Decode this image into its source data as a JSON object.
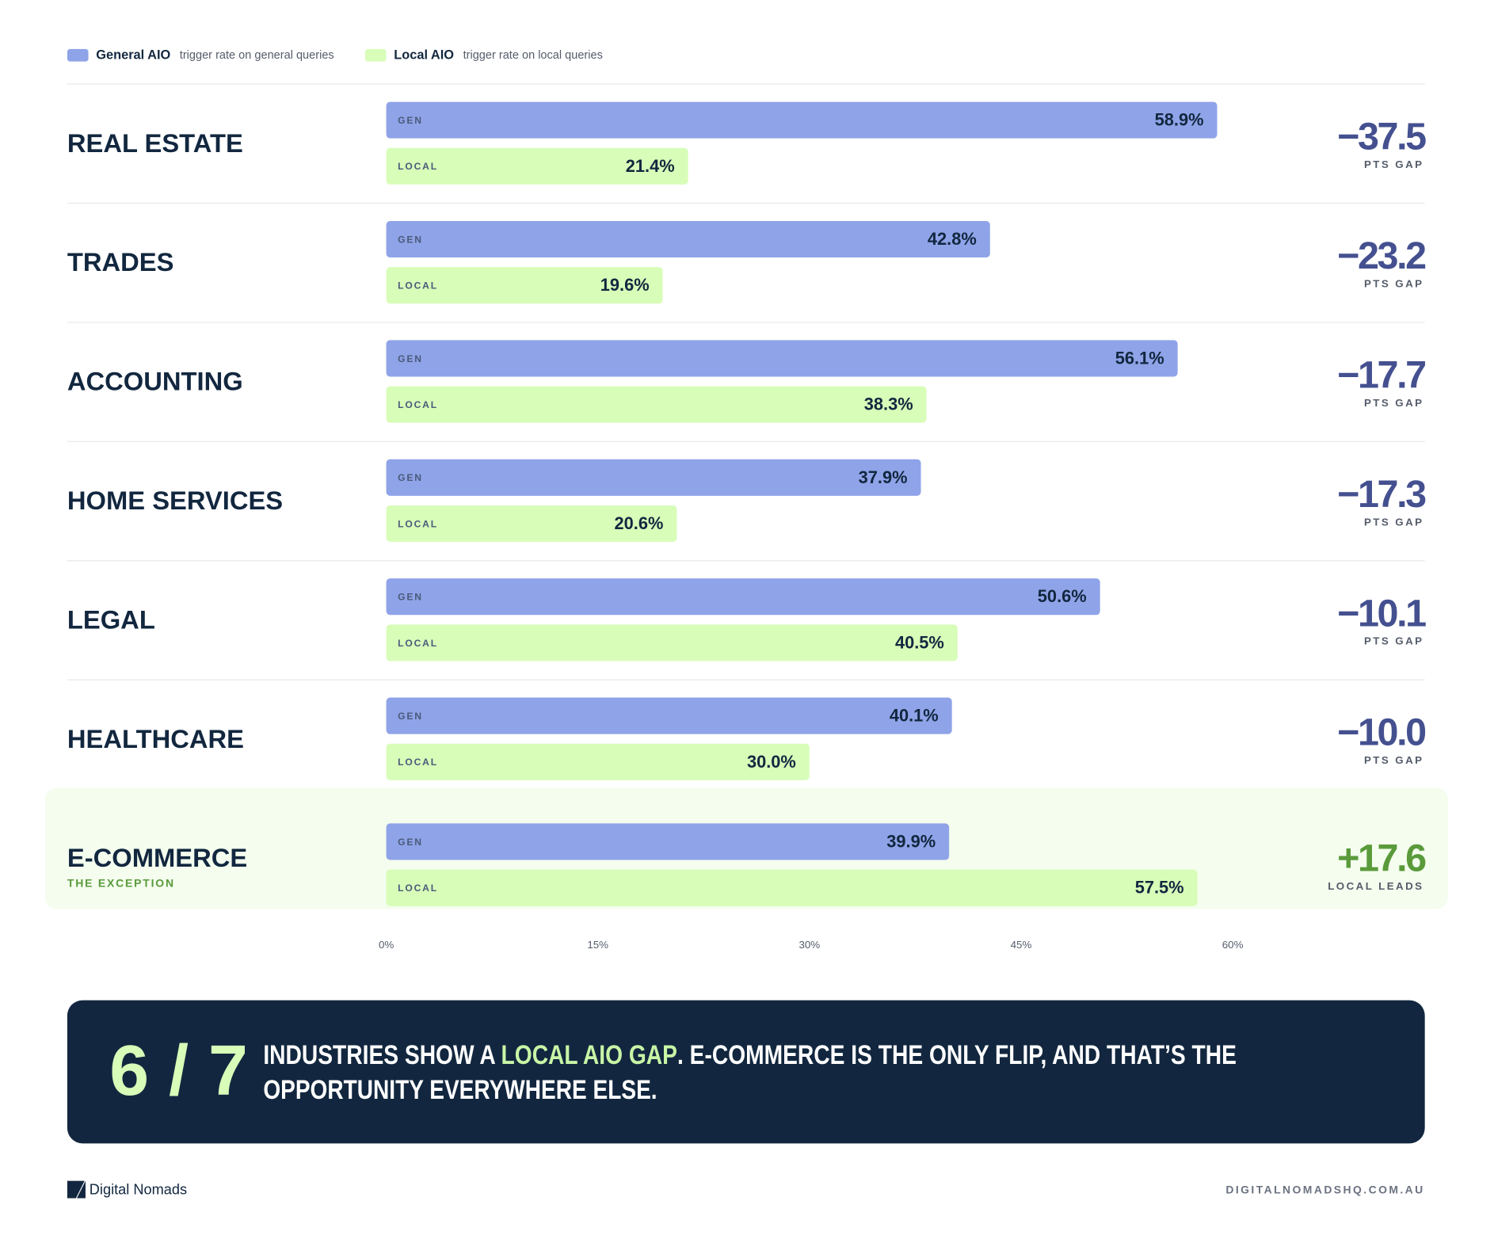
{
  "chart_data": {
    "type": "grouped-bar-horizontal",
    "legend": [
      {
        "name": "General AIO",
        "description": "trigger rate on general queries"
      },
      {
        "name": "Local AIO",
        "description": "trigger rate on local queries"
      }
    ],
    "categories": [
      "REAL ESTATE",
      "TRADES",
      "ACCOUNTING",
      "HOME SERVICES",
      "LEGAL",
      "HEALTHCARE",
      "E-COMMERCE"
    ],
    "category_notes": [
      null,
      null,
      null,
      null,
      null,
      null,
      "THE EXCEPTION"
    ],
    "series": [
      {
        "name": "General AIO",
        "short_label": "GEN",
        "color": "#8fa3e8",
        "values": [
          58.9,
          42.8,
          56.1,
          37.9,
          50.6,
          40.1,
          39.9
        ],
        "value_labels": [
          "58.9%",
          "42.8%",
          "56.1%",
          "37.9%",
          "50.6%",
          "40.1%",
          "39.9%"
        ]
      },
      {
        "name": "Local AIO",
        "short_label": "LOCAL",
        "color": "#d8fdb9",
        "values": [
          21.4,
          19.6,
          38.3,
          20.6,
          40.5,
          30.0,
          57.5
        ],
        "value_labels": [
          "21.4%",
          "19.6%",
          "38.3%",
          "20.6%",
          "40.5%",
          "30.0%",
          "57.5%"
        ]
      }
    ],
    "gap": {
      "values": [
        -37.5,
        -23.2,
        -17.7,
        -17.3,
        -10.1,
        -10.0,
        17.6
      ],
      "value_labels": [
        "−37.5",
        "−23.2",
        "−17.7",
        "−17.3",
        "−10.1",
        "−10.0",
        "+17.6"
      ],
      "captions": [
        "PTS GAP",
        "PTS GAP",
        "PTS GAP",
        "PTS GAP",
        "PTS GAP",
        "PTS GAP",
        "LOCAL LEADS"
      ]
    },
    "xlim": [
      0,
      60
    ],
    "xticks": [
      {
        "value": 0,
        "label": "0%"
      },
      {
        "value": 15,
        "label": "15%"
      },
      {
        "value": 30,
        "label": "30%"
      },
      {
        "value": 45,
        "label": "45%"
      },
      {
        "value": 60,
        "label": "60%"
      }
    ]
  },
  "callout": {
    "stat": "6 / 7",
    "line1": [
      "INDUSTRIES SHOW A ",
      "LOCAL AIO GAP",
      ". E-COMMERCE IS THE ONLY FLIP, AND THAT’S THE"
    ],
    "line2": "OPPORTUNITY EVERYWHERE ELSE."
  },
  "footer": {
    "brand": "Digital Nomads",
    "url": "DIGITALNOMADSHQ.COM.AU"
  }
}
